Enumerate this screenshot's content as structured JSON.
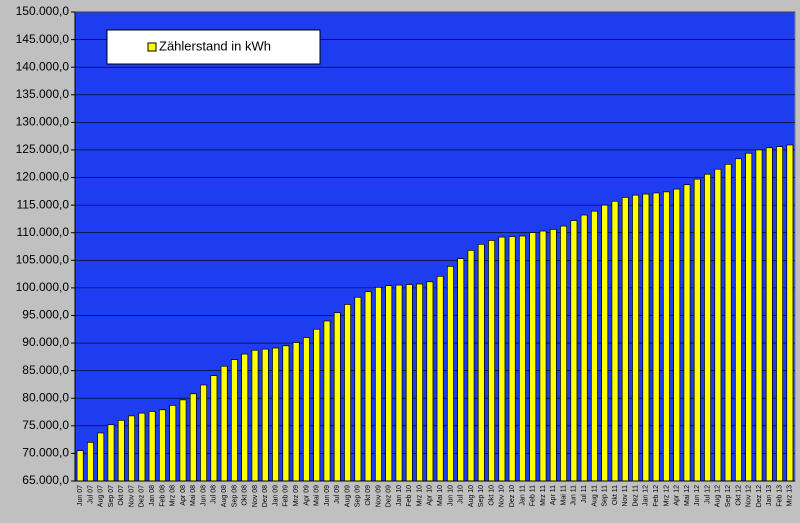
{
  "chart_data": {
    "type": "bar",
    "categories": [
      "Jun 07",
      "Jul 07",
      "Aug 07",
      "Sep 07",
      "Okt 07",
      "Nov 07",
      "Dez 07",
      "Jan 08",
      "Feb 08",
      "Mrz 08",
      "Apr 08",
      "Mai 08",
      "Jun 08",
      "Jul 08",
      "Aug 08",
      "Sep 08",
      "Okt 08",
      "Nov 08",
      "Dez 08",
      "Jan 09",
      "Feb 09",
      "Mrz 09",
      "Apr 09",
      "Mai 09",
      "Jun 09",
      "Jul 09",
      "Aug 09",
      "Sep 09",
      "Okt 09",
      "Nov 09",
      "Dez 09",
      "Jan 10",
      "Feb 10",
      "Mrz 10",
      "Apr 10",
      "Mai 10",
      "Jun 10",
      "Jul 10",
      "Aug 10",
      "Sep 10",
      "Okt 10",
      "Nov 10",
      "Dez 10",
      "Jan 11",
      "Feb 11",
      "Mrz 11",
      "Apr 11",
      "Mai 11",
      "Jun 11",
      "Jul 11",
      "Aug 11",
      "Sep 11",
      "Okt 11",
      "Nov 11",
      "Dez 11",
      "Jan 12",
      "Feb 12",
      "Mrz 12",
      "Apr 12",
      "Mai 12",
      "Jun 12",
      "Jul 12",
      "Aug 12",
      "Sep 12",
      "Okt 12",
      "Nov 12",
      "Dez 12",
      "Jan 13",
      "Feb 13",
      "Mrz 13"
    ],
    "series": [
      {
        "name": "Zählerstand in kWh",
        "color": "#ffff00",
        "values": [
          70500,
          72000,
          73700,
          75200,
          76000,
          76800,
          77300,
          77600,
          77900,
          78700,
          79700,
          80800,
          82400,
          84100,
          85800,
          87000,
          88000,
          88700,
          88900,
          89100,
          89500,
          90100,
          91000,
          92500,
          94000,
          95500,
          97000,
          98300,
          99300,
          100100,
          100400,
          100500,
          100600,
          100700,
          101100,
          102100,
          103900,
          105300,
          106800,
          107900,
          108600,
          109200,
          109300,
          109400,
          110000,
          110300,
          110600,
          111200,
          112200,
          113200,
          113900,
          115000,
          115700,
          116400,
          116800,
          117000,
          117200,
          117400,
          117900,
          118700,
          119700,
          120600,
          121500,
          122400,
          123400,
          124400,
          125000,
          125400,
          125600,
          125900
        ]
      }
    ],
    "ylim": [
      65000,
      150000
    ],
    "yticks": [
      {
        "value": 65000,
        "label": "65.000,0"
      },
      {
        "value": 70000,
        "label": "70.000,0"
      },
      {
        "value": 75000,
        "label": "75.000,0"
      },
      {
        "value": 80000,
        "label": "80.000,0"
      },
      {
        "value": 85000,
        "label": "85.000,0"
      },
      {
        "value": 90000,
        "label": "90.000,0"
      },
      {
        "value": 95000,
        "label": "95.000,0"
      },
      {
        "value": 100000,
        "label": "100.000,0"
      },
      {
        "value": 105000,
        "label": "105.000,0"
      },
      {
        "value": 110000,
        "label": "110.000,0"
      },
      {
        "value": 115000,
        "label": "115.000,0"
      },
      {
        "value": 120000,
        "label": "120.000,0"
      },
      {
        "value": 125000,
        "label": "125.000,0"
      },
      {
        "value": 130000,
        "label": "130.000,0"
      },
      {
        "value": 135000,
        "label": "135.000,0"
      },
      {
        "value": 140000,
        "label": "140.000,0"
      },
      {
        "value": 145000,
        "label": "145.000,0"
      },
      {
        "value": 150000,
        "label": "150.000,0"
      }
    ],
    "grid": true,
    "legend": "top-left"
  }
}
